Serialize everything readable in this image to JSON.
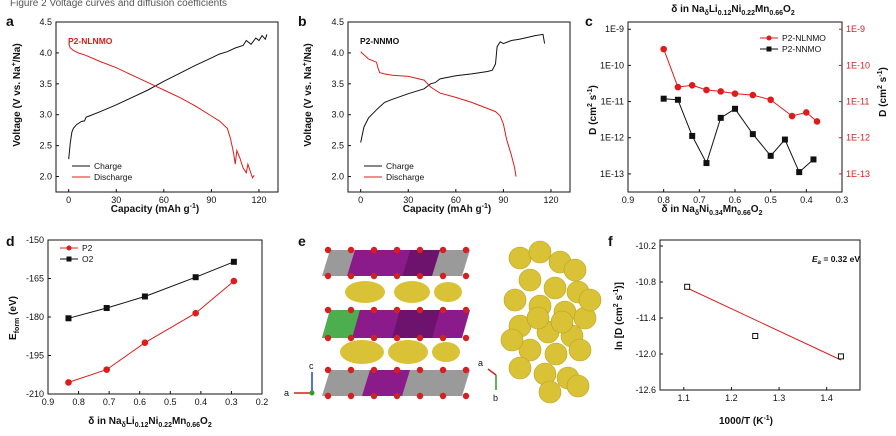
{
  "panel_labels": {
    "a": "a",
    "b": "b",
    "c": "c",
    "d": "d",
    "e": "e",
    "f": "f"
  },
  "top_caption": "Figure 2 Voltage curves and diffusion coefficients",
  "colors": {
    "red": "#e01b1b",
    "black": "#111111",
    "purple": "#8b1a8b",
    "grey": "#8c8c8c",
    "yellow": "#d9c236",
    "green": "#4cae4c",
    "oxygen": "#d42020"
  },
  "chart_data": [
    {
      "id": "a",
      "type": "line",
      "annotation": "P2-NLNMO",
      "xlabel": "Capacity (mAh g-1)",
      "ylabel": "Voltage (V vs. Na+/Na)",
      "xlim": [
        -8,
        132
      ],
      "ylim": [
        1.75,
        4.5
      ],
      "xticks": [
        "0",
        "30",
        "60",
        "90",
        "120"
      ],
      "xtick_values": [
        0,
        30,
        60,
        90,
        120
      ],
      "yticks": [
        "2.0",
        "2.5",
        "3.0",
        "3.5",
        "4.0",
        "4.5"
      ],
      "ytick_values": [
        2.0,
        2.5,
        3.0,
        3.5,
        4.0,
        4.5
      ],
      "series": [
        {
          "name": "Charge",
          "color": "#111111",
          "x": [
            0,
            1,
            2,
            3,
            5,
            8,
            10,
            11,
            13,
            20,
            30,
            40,
            50,
            60,
            70,
            80,
            90,
            95,
            100,
            105,
            110,
            112,
            115,
            118,
            120,
            122,
            124,
            125
          ],
          "y": [
            2.28,
            2.55,
            2.72,
            2.78,
            2.84,
            2.89,
            2.9,
            2.96,
            2.98,
            3.05,
            3.16,
            3.28,
            3.4,
            3.54,
            3.67,
            3.8,
            3.92,
            3.98,
            4.02,
            4.08,
            4.12,
            4.2,
            4.14,
            4.24,
            4.2,
            4.28,
            4.22,
            4.3
          ]
        },
        {
          "name": "Discharge",
          "color": "#e01b1b",
          "x": [
            0,
            1,
            3,
            6,
            10,
            20,
            30,
            40,
            50,
            60,
            70,
            80,
            90,
            95,
            100,
            102,
            104,
            105,
            106,
            108,
            110,
            112,
            113,
            115,
            116,
            117
          ],
          "y": [
            4.15,
            4.08,
            4.04,
            4.0,
            3.97,
            3.86,
            3.76,
            3.64,
            3.52,
            3.4,
            3.28,
            3.14,
            2.98,
            2.9,
            2.78,
            2.62,
            2.38,
            2.2,
            2.42,
            2.3,
            2.14,
            2.06,
            2.2,
            2.05,
            1.98,
            2.02
          ]
        }
      ]
    },
    {
      "id": "b",
      "type": "line",
      "annotation": "P2-NNMO",
      "xlabel": "Capacity (mAh g-1)",
      "ylabel": "Voltage (V vs. Na+/Na)",
      "xlim": [
        -8,
        132
      ],
      "ylim": [
        1.75,
        4.5
      ],
      "xticks": [
        "0",
        "30",
        "60",
        "90",
        "120"
      ],
      "xtick_values": [
        0,
        30,
        60,
        90,
        120
      ],
      "yticks": [
        "2.0",
        "2.5",
        "3.0",
        "3.5",
        "4.0",
        "4.5"
      ],
      "ytick_values": [
        2.0,
        2.5,
        3.0,
        3.5,
        4.0,
        4.5
      ],
      "series": [
        {
          "name": "Charge",
          "color": "#111111",
          "x": [
            0,
            2,
            5,
            10,
            15,
            20,
            30,
            40,
            44,
            47,
            50,
            60,
            70,
            80,
            83,
            85,
            86,
            88,
            90,
            95,
            100,
            105,
            110,
            115,
            116
          ],
          "y": [
            2.55,
            2.8,
            2.95,
            3.08,
            3.2,
            3.25,
            3.34,
            3.42,
            3.5,
            3.52,
            3.58,
            3.63,
            3.66,
            3.7,
            3.72,
            3.82,
            4.1,
            4.18,
            4.15,
            4.2,
            4.22,
            4.25,
            4.28,
            4.3,
            4.15
          ]
        },
        {
          "name": "Discharge",
          "color": "#e01b1b",
          "x": [
            0,
            5,
            10,
            11,
            12,
            15,
            20,
            30,
            40,
            44,
            47,
            50,
            60,
            70,
            80,
            85,
            88,
            90,
            92,
            95,
            97,
            98
          ],
          "y": [
            4.02,
            3.9,
            3.85,
            3.75,
            3.68,
            3.66,
            3.64,
            3.62,
            3.56,
            3.45,
            3.4,
            3.35,
            3.28,
            3.2,
            3.1,
            3.05,
            2.98,
            2.85,
            2.6,
            2.35,
            2.15,
            2.0
          ]
        }
      ]
    },
    {
      "id": "c",
      "type": "line",
      "title": "δ in NaδLi0.12Ni0.22Mn0.66O2",
      "xlabel": "δ in NaδNi0.34Mn0.66O2",
      "ylabel_left": "D (cm2 s-1)",
      "ylabel_right": "D (cm2 s-1)",
      "xlim": [
        0.9,
        0.3
      ],
      "ylim_log10": [
        -13.5,
        -8.8
      ],
      "xticks": [
        "0.9",
        "0.8",
        "0.7",
        "0.6",
        "0.5",
        "0.4",
        "0.3"
      ],
      "xtick_values": [
        0.9,
        0.8,
        0.7,
        0.6,
        0.5,
        0.4,
        0.3
      ],
      "yticks": [
        "1E-13",
        "1E-12",
        "1E-11",
        "1E-10",
        "1E-9"
      ],
      "ytick_log_values": [
        -13,
        -12,
        -11,
        -10,
        -9
      ],
      "series": [
        {
          "name": "P2-NLNMO",
          "color": "#e01b1b",
          "marker": "circle",
          "x": [
            0.8,
            0.76,
            0.72,
            0.68,
            0.64,
            0.6,
            0.55,
            0.5,
            0.44,
            0.4,
            0.37
          ],
          "y_log10": [
            -9.55,
            -10.6,
            -10.55,
            -10.68,
            -10.72,
            -10.78,
            -10.82,
            -10.95,
            -11.4,
            -11.3,
            -11.55
          ]
        },
        {
          "name": "P2-NNMO",
          "color": "#111111",
          "marker": "square",
          "x": [
            0.8,
            0.76,
            0.72,
            0.68,
            0.64,
            0.6,
            0.55,
            0.5,
            0.46,
            0.42,
            0.38
          ],
          "y_log10": [
            -10.92,
            -10.95,
            -11.95,
            -12.7,
            -11.45,
            -11.2,
            -11.9,
            -12.5,
            -12.05,
            -12.95,
            -12.6
          ]
        }
      ]
    },
    {
      "id": "d",
      "type": "line",
      "xlabel": "δ in NaδLi0.12Ni0.22Mn0.66O2",
      "ylabel": "Eform (eV)",
      "xlim": [
        0.9,
        0.2
      ],
      "ylim": [
        -210,
        -150
      ],
      "xticks": [
        "0.9",
        "0.8",
        "0.7",
        "0.6",
        "0.5",
        "0.4",
        "0.3",
        "0.2"
      ],
      "xtick_values": [
        0.9,
        0.8,
        0.7,
        0.6,
        0.5,
        0.4,
        0.3,
        0.2
      ],
      "yticks": [
        "-150",
        "-165",
        "-180",
        "-195",
        "-210"
      ],
      "ytick_values": [
        -150,
        -165,
        -180,
        -195,
        -210
      ],
      "series": [
        {
          "name": "P2",
          "color": "#e01b1b",
          "marker": "circle",
          "x": [
            0.833,
            0.708,
            0.583,
            0.417,
            0.292
          ],
          "y": [
            -205.5,
            -200.5,
            -190,
            -178.5,
            -166
          ]
        },
        {
          "name": "O2",
          "color": "#111111",
          "marker": "square",
          "x": [
            0.833,
            0.708,
            0.583,
            0.417,
            0.292
          ],
          "y": [
            -180.5,
            -176.5,
            -172,
            -164.5,
            -158.5
          ]
        }
      ]
    },
    {
      "id": "f",
      "type": "scatter",
      "annotation": "Ea = 0.32 eV",
      "xlabel": "1000/T (K-1)",
      "ylabel": "ln [D (cm2 s-1)]",
      "xlim": [
        1.05,
        1.47
      ],
      "ylim": [
        -12.6,
        -10.1
      ],
      "xticks": [
        "1.1",
        "1.2",
        "1.3",
        "1.4"
      ],
      "xtick_values": [
        1.1,
        1.2,
        1.3,
        1.4
      ],
      "yticks": [
        "-10.2",
        "-10.8",
        "-11.4",
        "-12.0",
        "-12.6"
      ],
      "ytick_values": [
        -10.2,
        -10.8,
        -11.4,
        -12.0,
        -12.6
      ],
      "points": {
        "x": [
          1.107,
          1.25,
          1.43
        ],
        "y": [
          -10.88,
          -11.7,
          -12.04
        ]
      },
      "fit": {
        "color": "#e01b1b",
        "x": [
          1.107,
          1.43
        ],
        "y": [
          -10.9,
          -12.1
        ]
      }
    }
  ],
  "panel_e": {
    "axis_left": {
      "c": "c",
      "a": "a"
    },
    "axis_right": {
      "a": "a",
      "b": "b"
    }
  },
  "text": {
    "mAh": "mAh g",
    "neg1": "-1",
    "cap_open": "Capacity (",
    "volt1": "Voltage (V vs. Na",
    "volt_plus": "+",
    "volt2": "/Na)",
    "charge": "Charge",
    "discharge": "Discharge",
    "d_sym": "δ",
    "na": "Na",
    "li": "Li",
    "ni": "Ni",
    "mn": "Mn",
    "o": "O",
    "sub_delta": "δ",
    "sub_012": "0.12",
    "sub_022": "0.22",
    "sub_066": "0.66",
    "sub_034": "0.34",
    "sub_2": "2",
    "D": "D (cm",
    "s": " s",
    "close": ")",
    "E": "E",
    "form": "form",
    " eV": " (eV)",
    "lnD": "ln [D (cm",
    "close2": ")]",
    "inv": "1000/T (K",
    "Ea": "E",
    "Ea_sub": "a",
    "Ea_val": " = 0.32 eV"
  }
}
